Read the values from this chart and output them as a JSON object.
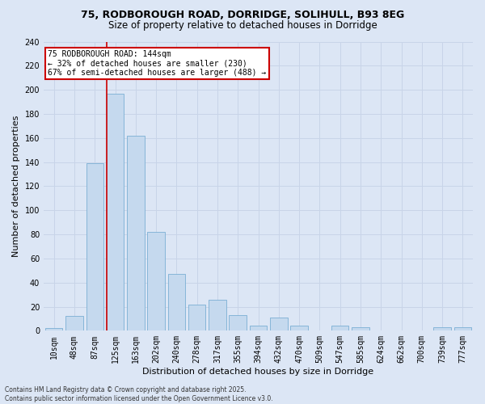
{
  "title_line1": "75, RODBOROUGH ROAD, DORRIDGE, SOLIHULL, B93 8EG",
  "title_line2": "Size of property relative to detached houses in Dorridge",
  "xlabel": "Distribution of detached houses by size in Dorridge",
  "ylabel": "Number of detached properties",
  "categories": [
    "10sqm",
    "48sqm",
    "87sqm",
    "125sqm",
    "163sqm",
    "202sqm",
    "240sqm",
    "278sqm",
    "317sqm",
    "355sqm",
    "394sqm",
    "432sqm",
    "470sqm",
    "509sqm",
    "547sqm",
    "585sqm",
    "624sqm",
    "662sqm",
    "700sqm",
    "739sqm",
    "777sqm"
  ],
  "values": [
    2,
    12,
    139,
    197,
    162,
    82,
    47,
    22,
    26,
    13,
    4,
    11,
    4,
    0,
    4,
    3,
    0,
    0,
    0,
    3,
    3
  ],
  "bar_color": "#c5d9ee",
  "bar_edge_color": "#7aafd4",
  "annotation_text": "75 RODBOROUGH ROAD: 144sqm\n← 32% of detached houses are smaller (230)\n67% of semi-detached houses are larger (488) →",
  "annotation_box_color": "#ffffff",
  "annotation_box_edge_color": "#cc0000",
  "vline_color": "#cc0000",
  "vline_bar_index": 3,
  "grid_color": "#c8d4e8",
  "bg_color": "#dce6f5",
  "plot_bg_color": "#dce6f5",
  "footer_text": "Contains HM Land Registry data © Crown copyright and database right 2025.\nContains public sector information licensed under the Open Government Licence v3.0.",
  "ylim": [
    0,
    240
  ],
  "yticks": [
    0,
    20,
    40,
    60,
    80,
    100,
    120,
    140,
    160,
    180,
    200,
    220,
    240
  ],
  "title1_fontsize": 9,
  "title2_fontsize": 8.5,
  "xlabel_fontsize": 8,
  "ylabel_fontsize": 8,
  "tick_fontsize": 7,
  "ann_fontsize": 7,
  "footer_fontsize": 5.5
}
